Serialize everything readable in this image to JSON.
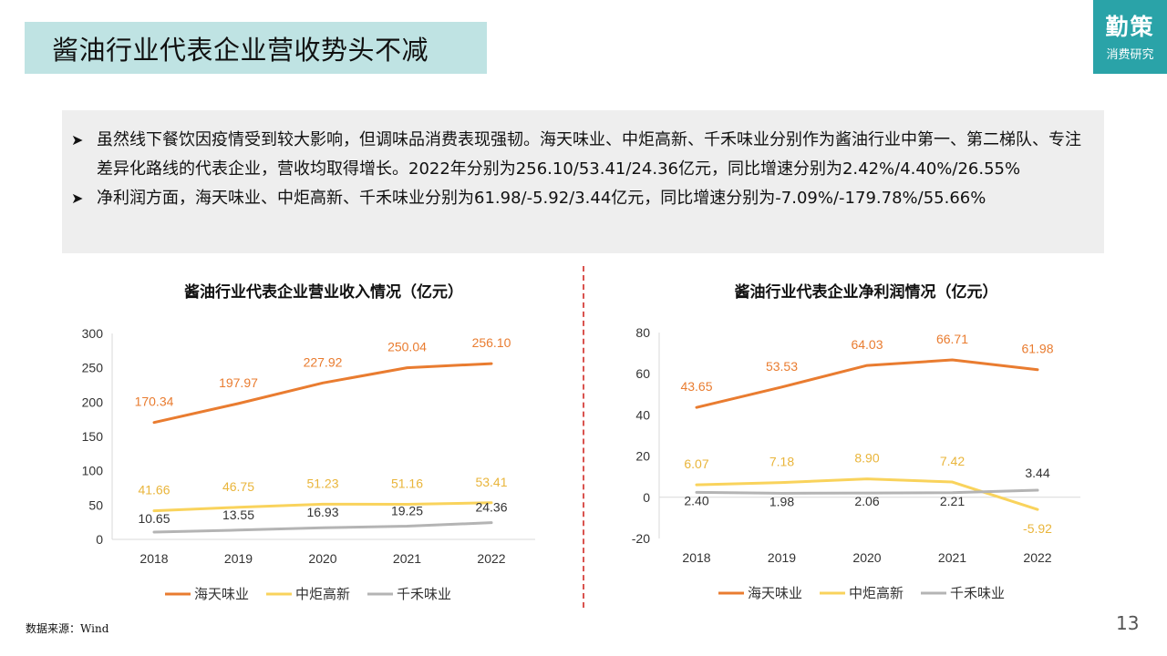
{
  "header": {
    "title": "酱油行业代表企业营收势头不减"
  },
  "brand": {
    "line1": "勤策",
    "line2": "消费研究"
  },
  "summary": {
    "bullets": [
      "虽然线下餐饮因疫情受到较大影响，但调味品消费表现强韧。海天味业、中炬高新、千禾味业分别作为酱油行业中第一、第二梯队、专注差异化路线的代表企业，营收均取得增长。2022年分别为256.10/53.41/24.36亿元，同比增速分别为2.42%/4.40%/26.55%",
      "净利润方面，海天味业、中炬高新、千禾味业分别为61.98/-5.92/3.44亿元，同比增速分别为-7.09%/-179.78%/55.66%"
    ]
  },
  "chart_data": [
    {
      "type": "line",
      "title": "酱油行业代表企业营业收入情况（亿元）",
      "categories": [
        "2018",
        "2019",
        "2020",
        "2021",
        "2022"
      ],
      "ylim": [
        0,
        300
      ],
      "yticks": [
        "0",
        "50",
        "100",
        "150",
        "200",
        "250",
        "300"
      ],
      "legend_position": "bottom",
      "grid": false,
      "series": [
        {
          "name": "海天味业",
          "color": "#e97c30",
          "values": [
            170.34,
            197.97,
            227.92,
            250.04,
            256.1
          ],
          "labels": [
            "170.34",
            "197.97",
            "227.92",
            "250.04",
            "256.10"
          ]
        },
        {
          "name": "中炬高新",
          "color": "#f9d35c",
          "values": [
            41.66,
            46.75,
            51.23,
            51.16,
            53.41
          ],
          "labels": [
            "41.66",
            "46.75",
            "51.23",
            "51.16",
            "53.41"
          ]
        },
        {
          "name": "千禾味业",
          "color": "#b4b4b4",
          "values": [
            10.65,
            13.55,
            16.93,
            19.25,
            24.36
          ],
          "labels": [
            "10.65",
            "13.55",
            "16.93",
            "19.25",
            "24.36"
          ]
        }
      ]
    },
    {
      "type": "line",
      "title": "酱油行业代表企业净利润情况（亿元）",
      "categories": [
        "2018",
        "2019",
        "2020",
        "2021",
        "2022"
      ],
      "ylim": [
        -20,
        80
      ],
      "yticks": [
        "-20",
        "0",
        "20",
        "40",
        "60",
        "80"
      ],
      "legend_position": "bottom",
      "grid": false,
      "series": [
        {
          "name": "海天味业",
          "color": "#e97c30",
          "values": [
            43.65,
            53.53,
            64.03,
            66.71,
            61.98
          ],
          "labels": [
            "43.65",
            "53.53",
            "64.03",
            "66.71",
            "61.98"
          ]
        },
        {
          "name": "中炬高新",
          "color": "#f9d35c",
          "values": [
            6.07,
            7.18,
            8.9,
            7.42,
            -5.92
          ],
          "labels": [
            "6.07",
            "7.18",
            "8.90",
            "7.42",
            "-5.92"
          ]
        },
        {
          "name": "千禾味业",
          "color": "#b4b4b4",
          "values": [
            2.4,
            1.98,
            2.06,
            2.21,
            3.44
          ],
          "labels": [
            "2.40",
            "1.98",
            "2.06",
            "2.21",
            "3.44"
          ]
        }
      ]
    }
  ],
  "footer": {
    "source": "数据来源：Wind",
    "page": "13"
  }
}
